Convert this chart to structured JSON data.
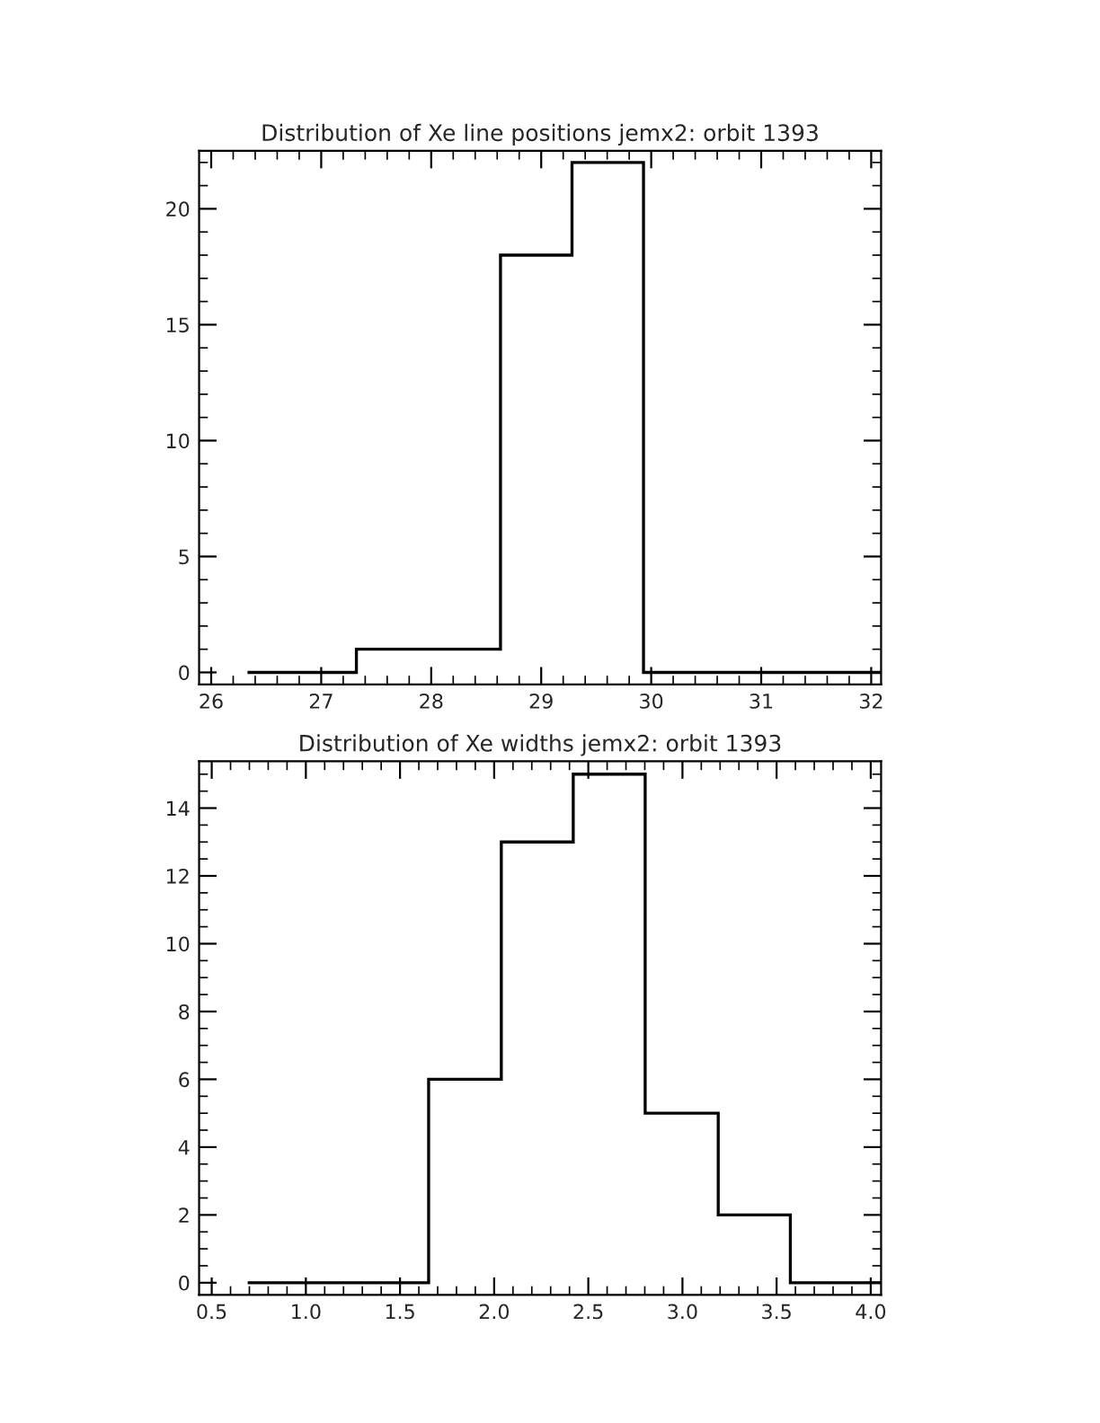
{
  "chart_data": [
    {
      "type": "histogram",
      "title": "Distribution of Xe line positions jemx2: orbit 1393",
      "bins": [
        26.33,
        27.32,
        28.63,
        29.28,
        29.93,
        32.09
      ],
      "values": [
        0,
        1,
        18,
        22,
        0
      ],
      "color": "#000000",
      "xlim": [
        25.89,
        32.09
      ],
      "xticks": [
        26,
        27,
        28,
        29,
        30,
        31,
        32
      ],
      "ylim": [
        -0.52,
        22.5
      ],
      "yticks": [
        0,
        5,
        10,
        15,
        20
      ],
      "grid": false,
      "legend": false
    },
    {
      "type": "histogram",
      "title": "Distribution of Xe widths jemx2: orbit 1393",
      "bins": [
        0.691,
        1.652,
        2.038,
        2.42,
        2.802,
        3.19,
        3.573,
        4.055
      ],
      "values": [
        0,
        6,
        13,
        15,
        5,
        2,
        0
      ],
      "color": "#000000",
      "xlim": [
        0.433,
        4.055
      ],
      "xticks": [
        {
          "value": 0.5,
          "label": "0.5"
        },
        {
          "value": 1.0,
          "label": "1.0"
        },
        {
          "value": 1.5,
          "label": "1.5"
        },
        {
          "value": 2.0,
          "label": "2.0"
        },
        {
          "value": 2.5,
          "label": "2.5"
        },
        {
          "value": 3.0,
          "label": "3.0"
        },
        {
          "value": 3.5,
          "label": "3.5"
        },
        {
          "value": 4.0,
          "label": "4.0"
        }
      ],
      "ylim": [
        -0.36,
        15.38
      ],
      "yticks": [
        0,
        2,
        4,
        6,
        8,
        10,
        12,
        14
      ],
      "grid": false,
      "legend": false
    }
  ]
}
